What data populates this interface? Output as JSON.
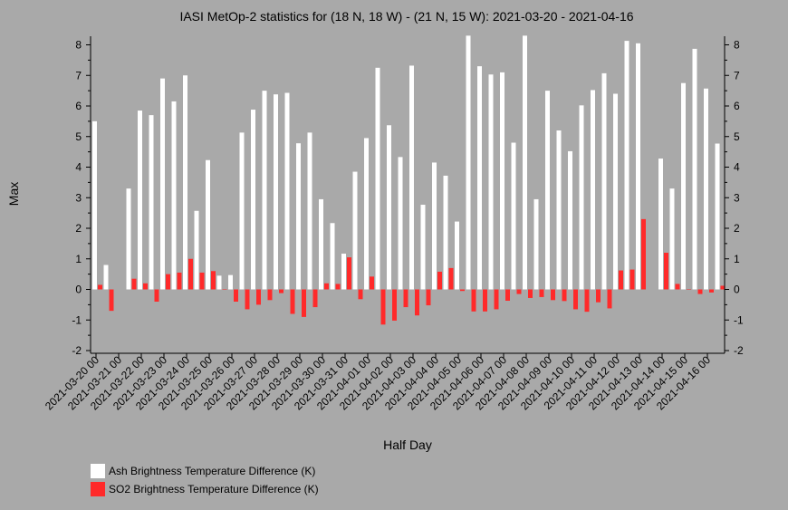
{
  "chart_data": {
    "type": "bar",
    "title": "IASI MetOp-2 statistics for (18 N, 18 W) - (21 N, 15 W): 2021-03-20 - 2021-04-16",
    "xlabel": "Half Day",
    "ylabel": "Max",
    "ylim": [
      -2,
      8.3
    ],
    "yticks": [
      8,
      7,
      6,
      5,
      4,
      3,
      2,
      1,
      0,
      -1,
      -2
    ],
    "ytick_labels": [
      "8",
      "7",
      "6",
      "5",
      "4",
      "3",
      "2",
      "1",
      "0",
      "-1",
      "-2"
    ],
    "xtick_labels": [
      "2021-03-20 00",
      "2021-03-21 00",
      "2021-03-22 00",
      "2021-03-23 00",
      "2021-03-24 00",
      "2021-03-25 00",
      "2021-03-26 00",
      "2021-03-27 00",
      "2021-03-28 00",
      "2021-03-29 00",
      "2021-03-30 00",
      "2021-03-31 00",
      "2021-04-01 00",
      "2021-04-02 00",
      "2021-04-03 00",
      "2021-04-04 00",
      "2021-04-05 00",
      "2021-04-06 00",
      "2021-04-07 00",
      "2021-04-08 00",
      "2021-04-09 00",
      "2021-04-10 00",
      "2021-04-11 00",
      "2021-04-12 00",
      "2021-04-13 00",
      "2021-04-14 00",
      "2021-04-15 00",
      "2021-04-16 00"
    ],
    "grid": false,
    "legend_position": "bottom-left",
    "series": [
      {
        "name": "Ash Brightness Temperature Difference (K)",
        "color": "#ffffff",
        "values": [
          5.5,
          0.8,
          null,
          3.3,
          5.85,
          5.7,
          6.9,
          6.15,
          7.0,
          2.57,
          4.23,
          0.45,
          0.47,
          5.13,
          5.88,
          6.5,
          6.38,
          6.43,
          4.78,
          5.13,
          2.95,
          2.17,
          1.17,
          3.85,
          4.95,
          7.25,
          5.37,
          4.33,
          7.32,
          2.77,
          4.15,
          3.72,
          2.22,
          8.3,
          7.3,
          7.03,
          7.1,
          4.8,
          8.3,
          2.95,
          6.5,
          5.2,
          4.52,
          6.02,
          6.52,
          7.07,
          6.4,
          8.13,
          8.05,
          null,
          4.28,
          3.3,
          6.75,
          7.87,
          6.57,
          4.77
        ]
      },
      {
        "name": "SO2 Brightness Temperature Difference (K)",
        "color": "#ff2a2a",
        "values": [
          0.15,
          -0.7,
          null,
          0.35,
          0.2,
          -0.4,
          0.5,
          0.55,
          1.0,
          0.55,
          0.6,
          0.0,
          -0.4,
          -0.65,
          -0.5,
          -0.35,
          -0.12,
          -0.8,
          -0.9,
          -0.58,
          0.2,
          0.18,
          1.05,
          -0.32,
          0.42,
          -1.15,
          -1.02,
          -0.58,
          -0.85,
          -0.52,
          0.58,
          0.7,
          -0.05,
          -0.72,
          -0.72,
          -0.65,
          -0.37,
          -0.15,
          -0.28,
          -0.25,
          -0.35,
          -0.38,
          -0.65,
          -0.73,
          -0.42,
          -0.62,
          0.62,
          0.65,
          2.3,
          null,
          1.2,
          0.18,
          0.0,
          -0.15,
          -0.1,
          0.12
        ]
      }
    ]
  }
}
